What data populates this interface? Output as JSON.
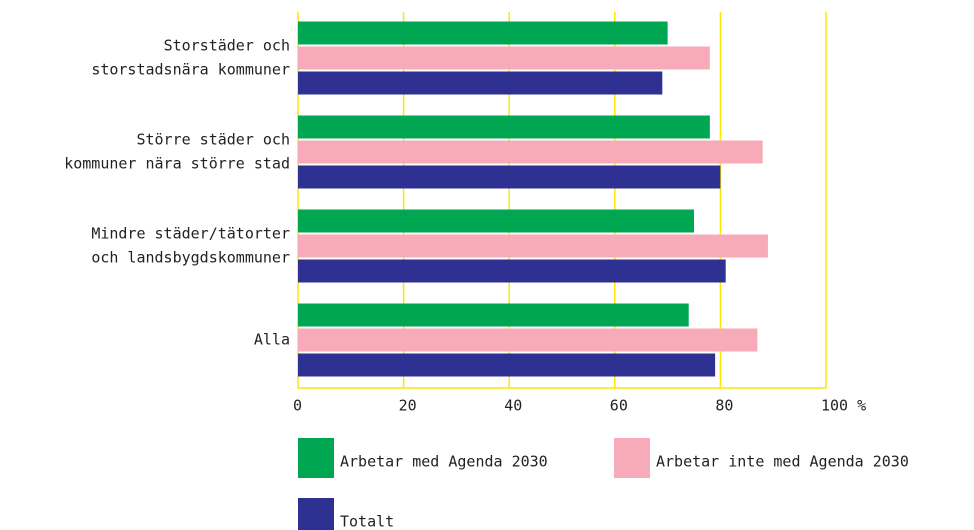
{
  "chart_data": {
    "type": "bar",
    "orientation": "horizontal",
    "categories": [
      [
        "Storstäder och",
        "storstadsnära kommuner"
      ],
      [
        "Större städer och",
        "kommuner nära större stad"
      ],
      [
        "Mindre städer/tätorter",
        "och landsbygdskommuner"
      ],
      [
        "Alla"
      ]
    ],
    "series": [
      {
        "name": "Arbetar med Agenda 2030",
        "color": "#00a651",
        "values": [
          70,
          78,
          75,
          74
        ]
      },
      {
        "name": "Arbetar inte med Agenda 2030",
        "color": "#f7aab8",
        "values": [
          78,
          88,
          89,
          87
        ]
      },
      {
        "name": "Totalt",
        "color": "#2e3192",
        "values": [
          69,
          80,
          81,
          79
        ]
      }
    ],
    "xlim": [
      0,
      100
    ],
    "xticks": [
      0,
      20,
      40,
      60,
      80,
      {
        "value": 100,
        "label": "100 %"
      }
    ],
    "grid": true,
    "grid_color": "#ffe600",
    "legend": "bottom"
  }
}
